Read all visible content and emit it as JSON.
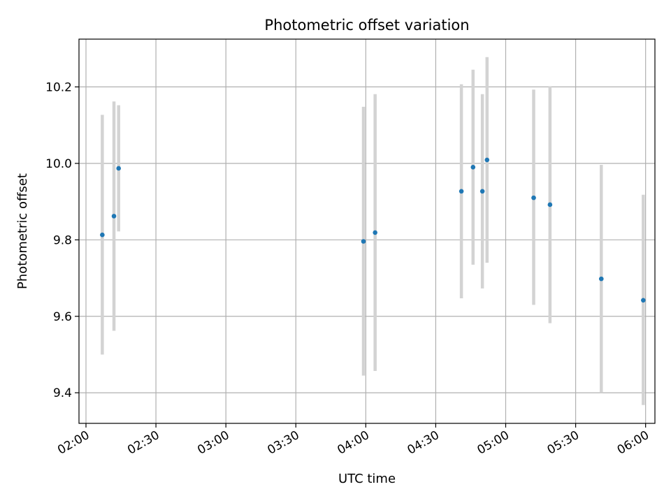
{
  "chart_data": {
    "type": "scatter",
    "title": "Photometric offset variation",
    "xlabel": "UTC time",
    "ylabel": "Photometric offset",
    "grid": true,
    "x_ticks": [
      "02:00",
      "02:30",
      "03:00",
      "03:30",
      "04:00",
      "04:30",
      "05:00",
      "05:30",
      "06:00"
    ],
    "y_ticks": [
      "9.4",
      "9.6",
      "9.8",
      "10.0",
      "10.2"
    ],
    "xlim": [
      "01:57",
      "06:04"
    ],
    "ylim": [
      9.32,
      10.325
    ],
    "point_color": "#1f77b4",
    "errorbar_color": "#d3d3d3",
    "series": [
      {
        "points": [
          {
            "x": "02:07",
            "y": 9.813,
            "ylow": 9.5,
            "yhigh": 10.127
          },
          {
            "x": "02:12",
            "y": 9.862,
            "ylow": 9.562,
            "yhigh": 10.162
          },
          {
            "x": "02:14",
            "y": 9.987,
            "ylow": 9.822,
            "yhigh": 10.152
          },
          {
            "x": "03:59",
            "y": 9.796,
            "ylow": 9.445,
            "yhigh": 10.148
          },
          {
            "x": "04:04",
            "y": 9.819,
            "ylow": 9.457,
            "yhigh": 10.181
          },
          {
            "x": "04:41",
            "y": 9.927,
            "ylow": 9.647,
            "yhigh": 10.207
          },
          {
            "x": "04:46",
            "y": 9.99,
            "ylow": 9.735,
            "yhigh": 10.245
          },
          {
            "x": "04:50",
            "y": 9.927,
            "ylow": 9.673,
            "yhigh": 10.181
          },
          {
            "x": "04:52",
            "y": 10.009,
            "ylow": 9.74,
            "yhigh": 10.278
          },
          {
            "x": "05:12",
            "y": 9.91,
            "ylow": 9.63,
            "yhigh": 10.193
          },
          {
            "x": "05:19",
            "y": 9.892,
            "ylow": 9.582,
            "yhigh": 10.202
          },
          {
            "x": "05:41",
            "y": 9.698,
            "ylow": 9.4,
            "yhigh": 9.996
          },
          {
            "x": "05:59",
            "y": 9.642,
            "ylow": 9.368,
            "yhigh": 9.918
          }
        ]
      }
    ]
  }
}
